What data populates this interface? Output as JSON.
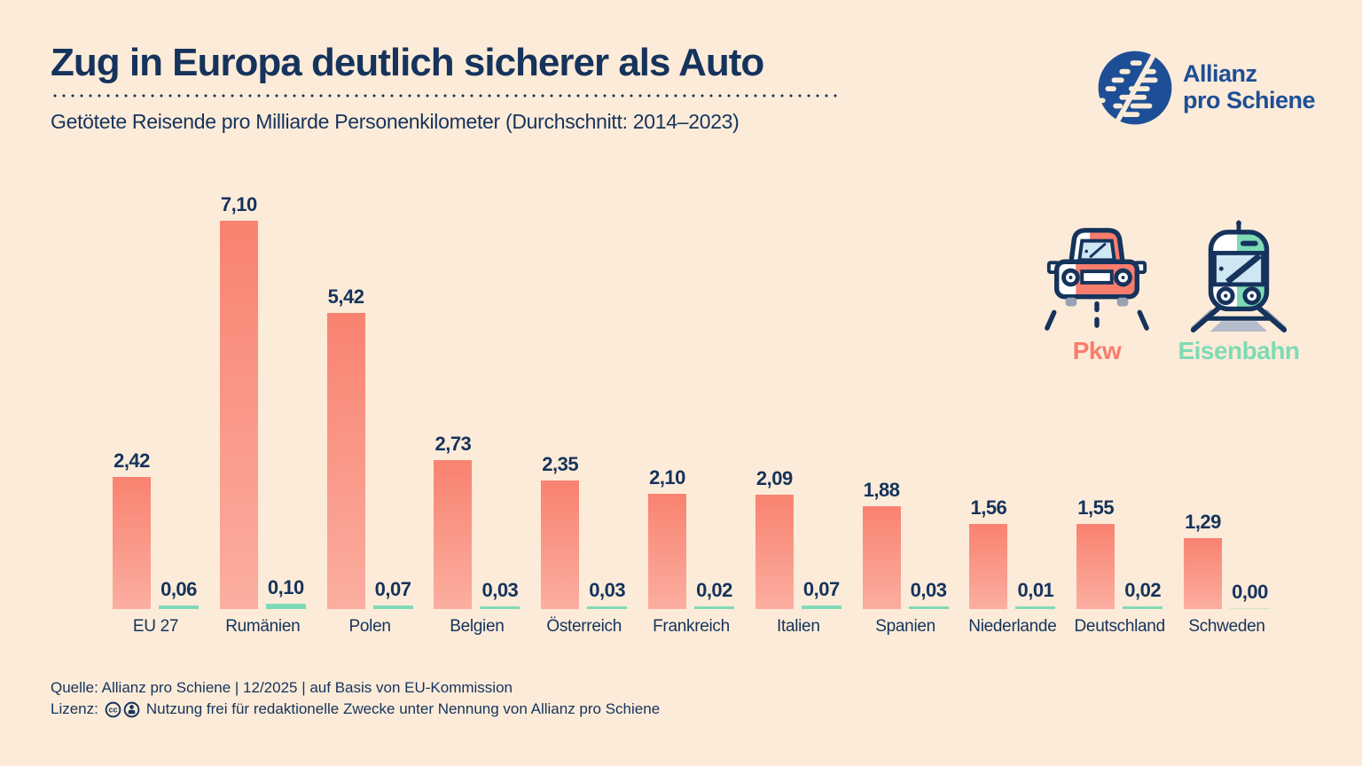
{
  "header": {
    "title": "Zug in Europa deutlich sicherer als Auto",
    "subtitle": "Getötete Reisende pro Milliarde Personenkilometer (Durchschnitt: 2014–2023)"
  },
  "brand": {
    "line1": "Allianz",
    "line2": "pro Schiene"
  },
  "legend": {
    "car_label": "Pkw",
    "train_label": "Eisenbahn"
  },
  "chart_data": {
    "type": "bar",
    "title": "Getötete Reisende pro Milliarde Personenkilometer (Durchschnitt: 2014–2023)",
    "categories": [
      "EU 27",
      "Rumänien",
      "Polen",
      "Belgien",
      "Österreich",
      "Frankreich",
      "Italien",
      "Spanien",
      "Niederlande",
      "Deutschland",
      "Schweden"
    ],
    "series": [
      {
        "name": "Pkw",
        "color_top": "#F98270",
        "color_bottom": "#FBAEA0",
        "values": [
          2.42,
          7.1,
          5.42,
          2.73,
          2.35,
          2.1,
          2.09,
          1.88,
          1.56,
          1.55,
          1.29
        ],
        "labels": [
          "2,42",
          "7,10",
          "5,42",
          "2,73",
          "2,35",
          "2,10",
          "2,09",
          "1,88",
          "1,56",
          "1,55",
          "1,29"
        ]
      },
      {
        "name": "Eisenbahn",
        "color": "#7EDAB5",
        "values": [
          0.06,
          0.1,
          0.07,
          0.03,
          0.03,
          0.02,
          0.07,
          0.03,
          0.01,
          0.02,
          0.0
        ],
        "labels": [
          "0,06",
          "0,10",
          "0,07",
          "0,03",
          "0,03",
          "0,02",
          "0,07",
          "0,03",
          "0,01",
          "0,02",
          "0,00"
        ]
      }
    ],
    "xlabel": "",
    "ylabel": "Getötete Reisende pro Mrd. Personenkilometer",
    "ylim": [
      0,
      7.5
    ],
    "grid": false,
    "legend_position": "right",
    "value_labels_shown": true
  },
  "footer": {
    "source": "Quelle: Allianz pro Schiene | 12/2025 | auf Basis von EU-Kommission",
    "license_prefix": "Lizenz:",
    "license_text": "Nutzung frei für redaktionelle Zwecke unter Nennung von Allianz pro Schiene"
  },
  "colors": {
    "background": "#FCEBD8",
    "navy": "#15335C",
    "salmon_top": "#F98270",
    "salmon_bottom": "#FBAEA0",
    "mint": "#7EDAB5",
    "brand_blue": "#1E4F96",
    "window_blue": "#CFE6F3",
    "gray": "#99A2B3"
  }
}
